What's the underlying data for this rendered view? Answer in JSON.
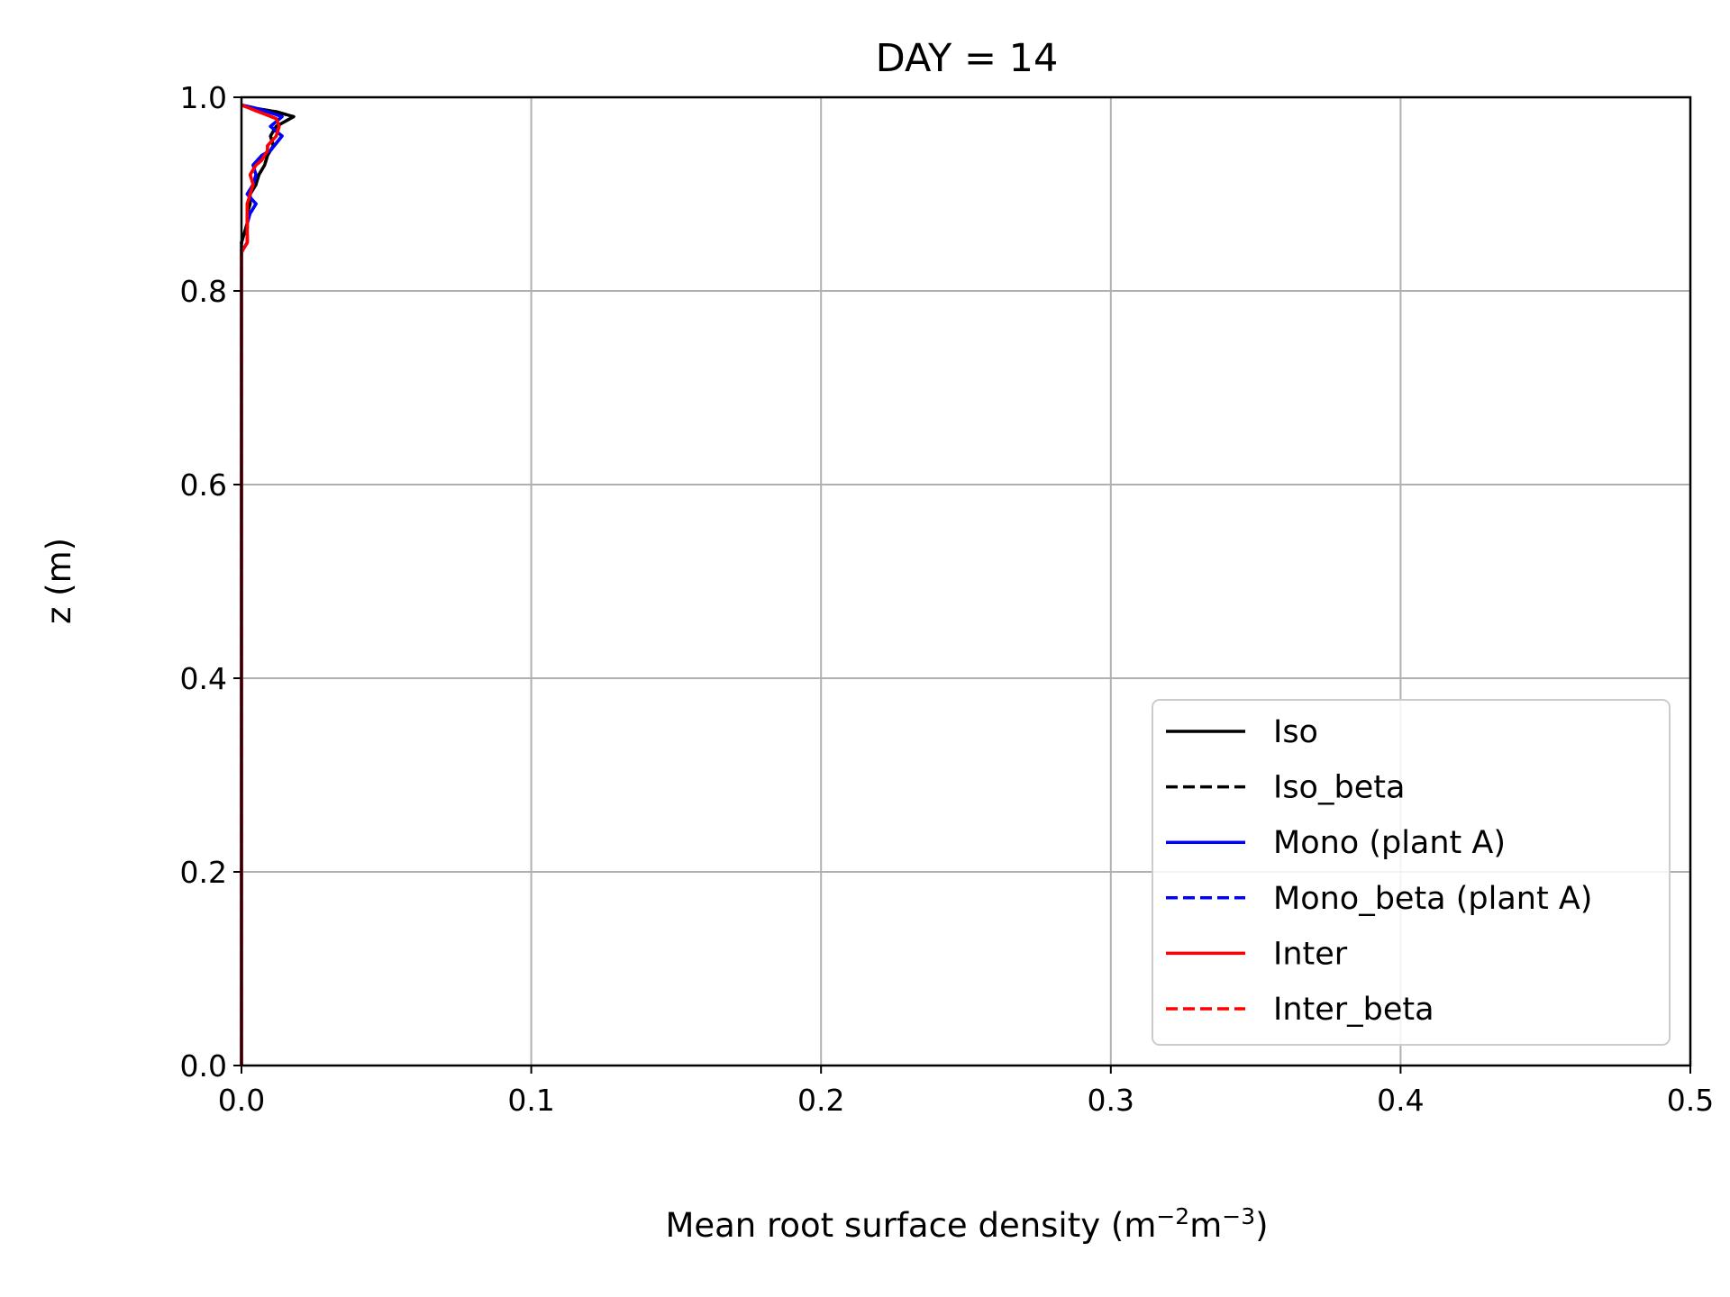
{
  "chart_data": {
    "type": "line",
    "title": "DAY = 14",
    "xlabel": "Mean root surface density (m",
    "xlabel_sup1": "−2",
    "xlabel_mid": "m",
    "xlabel_sup2": "−3",
    "xlabel_end": ")",
    "ylabel": "z (m)",
    "xlim": [
      0,
      0.5
    ],
    "ylim": [
      0,
      1.0
    ],
    "xticks": [
      "0.0",
      "0.1",
      "0.2",
      "0.3",
      "0.4",
      "0.5"
    ],
    "yticks": [
      "0.0",
      "0.2",
      "0.4",
      "0.6",
      "0.8",
      "1.0"
    ],
    "grid": true,
    "legend_position": "lower-right",
    "series": [
      {
        "name": "Iso",
        "color": "#000000",
        "dash": "solid",
        "points": [
          [
            0,
            0
          ],
          [
            0,
            0.85
          ],
          [
            0.001,
            0.86
          ],
          [
            0.002,
            0.87
          ],
          [
            0.002,
            0.88
          ],
          [
            0.003,
            0.89
          ],
          [
            0.003,
            0.9
          ],
          [
            0.005,
            0.91
          ],
          [
            0.006,
            0.92
          ],
          [
            0.008,
            0.93
          ],
          [
            0.009,
            0.94
          ],
          [
            0.011,
            0.95
          ],
          [
            0.01,
            0.96
          ],
          [
            0.012,
            0.97
          ],
          [
            0.018,
            0.98
          ],
          [
            0.012,
            0.985
          ],
          [
            0.002,
            0.99
          ],
          [
            0,
            0.992
          ]
        ]
      },
      {
        "name": "Iso_beta",
        "color": "#000000",
        "dash": "dashed",
        "points": [
          [
            0,
            0
          ],
          [
            0,
            0.85
          ],
          [
            0.001,
            0.86
          ],
          [
            0.002,
            0.87
          ],
          [
            0.002,
            0.88
          ],
          [
            0.003,
            0.89
          ],
          [
            0.003,
            0.9
          ],
          [
            0.005,
            0.91
          ],
          [
            0.006,
            0.92
          ],
          [
            0.008,
            0.93
          ],
          [
            0.009,
            0.94
          ],
          [
            0.011,
            0.95
          ],
          [
            0.01,
            0.96
          ],
          [
            0.012,
            0.97
          ],
          [
            0.018,
            0.98
          ],
          [
            0.012,
            0.985
          ],
          [
            0.002,
            0.99
          ],
          [
            0,
            0.992
          ]
        ]
      },
      {
        "name": "Mono (plant A)",
        "color": "#0000ff",
        "dash": "solid",
        "points": [
          [
            0,
            0
          ],
          [
            0,
            0.84
          ],
          [
            0.002,
            0.85
          ],
          [
            0.002,
            0.87
          ],
          [
            0.003,
            0.88
          ],
          [
            0.005,
            0.89
          ],
          [
            0.002,
            0.9
          ],
          [
            0.004,
            0.91
          ],
          [
            0.005,
            0.92
          ],
          [
            0.004,
            0.93
          ],
          [
            0.007,
            0.94
          ],
          [
            0.01,
            0.945
          ],
          [
            0.014,
            0.96
          ],
          [
            0.01,
            0.97
          ],
          [
            0.014,
            0.98
          ],
          [
            0.006,
            0.988
          ],
          [
            0,
            0.992
          ]
        ]
      },
      {
        "name": "Mono_beta (plant A)",
        "color": "#0000ff",
        "dash": "dashed",
        "points": [
          [
            0,
            0
          ],
          [
            0,
            0.84
          ],
          [
            0.002,
            0.85
          ],
          [
            0.002,
            0.87
          ],
          [
            0.003,
            0.88
          ],
          [
            0.005,
            0.89
          ],
          [
            0.002,
            0.9
          ],
          [
            0.004,
            0.91
          ],
          [
            0.005,
            0.92
          ],
          [
            0.004,
            0.93
          ],
          [
            0.007,
            0.94
          ],
          [
            0.01,
            0.945
          ],
          [
            0.014,
            0.96
          ],
          [
            0.01,
            0.97
          ],
          [
            0.014,
            0.98
          ],
          [
            0.006,
            0.988
          ],
          [
            0,
            0.992
          ]
        ]
      },
      {
        "name": "Inter",
        "color": "#ff0000",
        "dash": "solid",
        "points": [
          [
            0,
            0
          ],
          [
            0,
            0.84
          ],
          [
            0.002,
            0.85
          ],
          [
            0.002,
            0.87
          ],
          [
            0.002,
            0.89
          ],
          [
            0.003,
            0.9
          ],
          [
            0.004,
            0.91
          ],
          [
            0.003,
            0.92
          ],
          [
            0.005,
            0.93
          ],
          [
            0.007,
            0.935
          ],
          [
            0.009,
            0.945
          ],
          [
            0.009,
            0.95
          ],
          [
            0.012,
            0.96
          ],
          [
            0.013,
            0.97
          ],
          [
            0.012,
            0.978
          ],
          [
            0.005,
            0.986
          ],
          [
            0,
            0.992
          ]
        ]
      },
      {
        "name": "Inter_beta",
        "color": "#ff0000",
        "dash": "dashed",
        "points": [
          [
            0,
            0
          ],
          [
            0,
            0.84
          ],
          [
            0.002,
            0.85
          ],
          [
            0.002,
            0.87
          ],
          [
            0.002,
            0.89
          ],
          [
            0.003,
            0.9
          ],
          [
            0.004,
            0.91
          ],
          [
            0.003,
            0.92
          ],
          [
            0.005,
            0.93
          ],
          [
            0.007,
            0.935
          ],
          [
            0.009,
            0.945
          ],
          [
            0.009,
            0.95
          ],
          [
            0.012,
            0.96
          ],
          [
            0.013,
            0.97
          ],
          [
            0.012,
            0.978
          ],
          [
            0.005,
            0.986
          ],
          [
            0,
            0.992
          ]
        ]
      }
    ]
  }
}
